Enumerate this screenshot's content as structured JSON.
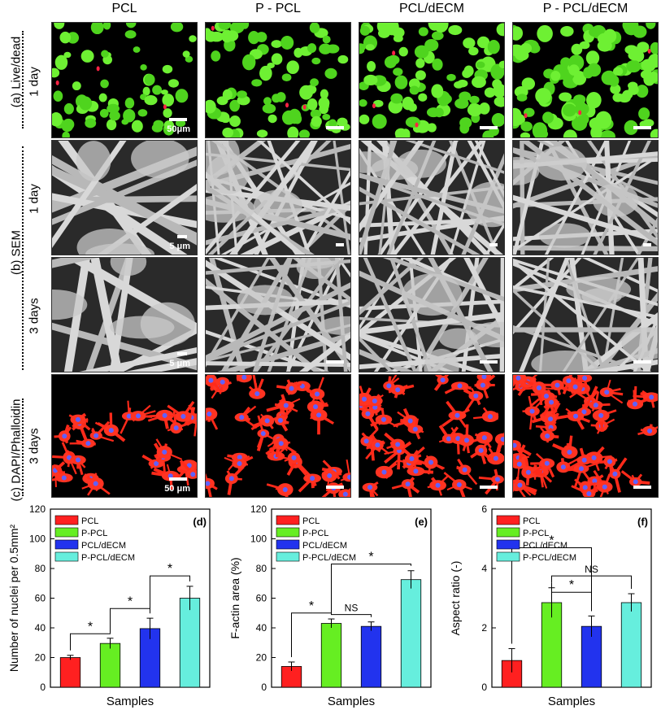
{
  "columns": [
    "PCL",
    "P - PCL",
    "PCL/dECM",
    "P - PCL/dECM"
  ],
  "row_labels": {
    "live_dead": "(a) Live/dead",
    "sem": "(b) SEM",
    "dapi": "(c) DAPI/Phalloidin"
  },
  "time_labels": {
    "live_dead": "1 day",
    "sem_1": "1 day",
    "sem_3": "3 days",
    "dapi": "3 days"
  },
  "scale_labels": {
    "live_dead": "50μm",
    "sem_1": "5 μm",
    "sem_3": "5 μm",
    "dapi": "50 μm"
  },
  "colors": {
    "PCL": "#ff2020",
    "P-PCL": "#66ee22",
    "PCL/dECM": "#2233ee",
    "P-PCL/dECM": "#66eedd"
  },
  "chart_data": [
    {
      "type": "bar",
      "panel": "(d)",
      "categories": [
        "PCL",
        "P-PCL",
        "PCL/dECM",
        "P-PCL/dECM"
      ],
      "values": [
        20,
        29.5,
        39.5,
        60
      ],
      "errors": [
        1.5,
        3.5,
        7,
        8
      ],
      "xlabel": "Samples",
      "ylabel": "Number of nuclei per 0.5mm²",
      "ylim": [
        0,
        120
      ],
      "yticks": [
        0,
        20,
        40,
        60,
        80,
        100,
        120
      ],
      "legend": [
        "PCL",
        "P-PCL",
        "PCL/dECM",
        "P-PCL/dECM"
      ],
      "significance": [
        {
          "from": 0,
          "to": 1,
          "label": "*",
          "y": 36
        },
        {
          "from": 1,
          "to": 2,
          "label": "*",
          "y": 53
        },
        {
          "from": 2,
          "to": 3,
          "label": "*",
          "y": 75
        }
      ]
    },
    {
      "type": "bar",
      "panel": "(e)",
      "categories": [
        "PCL",
        "P-PCL",
        "PCL/dECM",
        "P-PCL/dECM"
      ],
      "values": [
        14,
        43,
        41,
        72.5
      ],
      "errors": [
        3,
        3,
        3,
        6
      ],
      "xlabel": "Samples",
      "ylabel": "F-actin area (%)",
      "ylim": [
        0,
        120
      ],
      "yticks": [
        0,
        20,
        40,
        60,
        80,
        100,
        120
      ],
      "legend": [
        "PCL",
        "P-PCL",
        "PCL/dECM",
        "P-PCL/dECM"
      ],
      "significance": [
        {
          "from": 0,
          "to": 1,
          "label": "*",
          "y": 50
        },
        {
          "from": 1,
          "to": 2,
          "label": "NS",
          "y": 49
        },
        {
          "from": 1,
          "to": 3,
          "label": "*",
          "y": 83
        }
      ]
    },
    {
      "type": "bar",
      "panel": "(f)",
      "categories": [
        "PCL",
        "P-PCL",
        "PCL/dECM",
        "P-PCL/dECM"
      ],
      "values": [
        0.9,
        2.85,
        2.05,
        2.85
      ],
      "errors": [
        0.4,
        0.5,
        0.35,
        0.3
      ],
      "xlabel": "Samples",
      "ylabel": "Aspect ratio (-)",
      "ylim": [
        0,
        6
      ],
      "yticks": [
        0,
        2,
        4,
        6
      ],
      "legend": [
        "PCL",
        "P-PCL",
        "PCL/dECM",
        "P-PCL/dECM"
      ],
      "significance": [
        {
          "from": 0,
          "to": 2,
          "label": "*",
          "y": 4.7
        },
        {
          "from": 1,
          "to": 3,
          "label": "NS",
          "y": 3.75
        },
        {
          "from": 1,
          "to": 2,
          "label": "*",
          "y": 3.2
        }
      ]
    }
  ]
}
